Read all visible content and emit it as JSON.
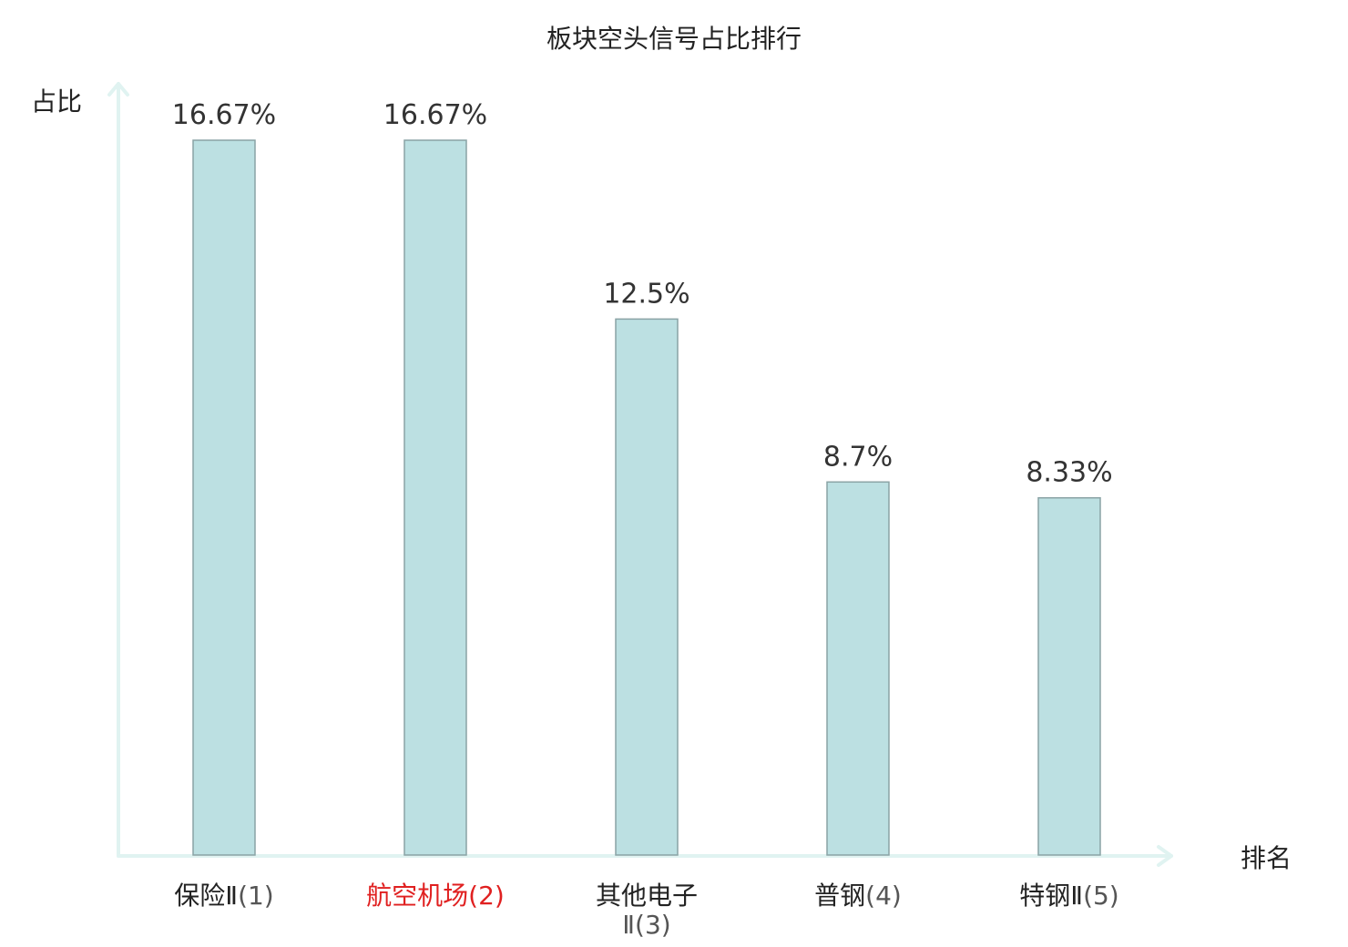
{
  "chart_data": {
    "type": "bar",
    "title": "板块空头信号占比排行",
    "ylabel": "占比",
    "xlabel": "排名",
    "ylim": [
      0,
      20
    ],
    "grid": false,
    "categories": [
      {
        "name": "保险Ⅱ",
        "rank": "(1)",
        "highlight": false
      },
      {
        "name": "航空机场",
        "rank": "(2)",
        "highlight": true
      },
      {
        "name": "其他电子Ⅱ",
        "rank": "(3)",
        "highlight": false
      },
      {
        "name": "普钢",
        "rank": "(4)",
        "highlight": false
      },
      {
        "name": "特钢Ⅱ",
        "rank": "(5)",
        "highlight": false
      }
    ],
    "values": [
      16.67,
      16.67,
      12.5,
      8.7,
      8.33
    ],
    "value_labels": [
      "16.67%",
      "16.67%",
      "12.5%",
      "8.7%",
      "8.33%"
    ],
    "colors": {
      "bar_fill": "#bce0e2",
      "bar_stroke": "#8aa3a5",
      "axis": "#e0f3f1",
      "highlight_label": "#e02020"
    }
  }
}
